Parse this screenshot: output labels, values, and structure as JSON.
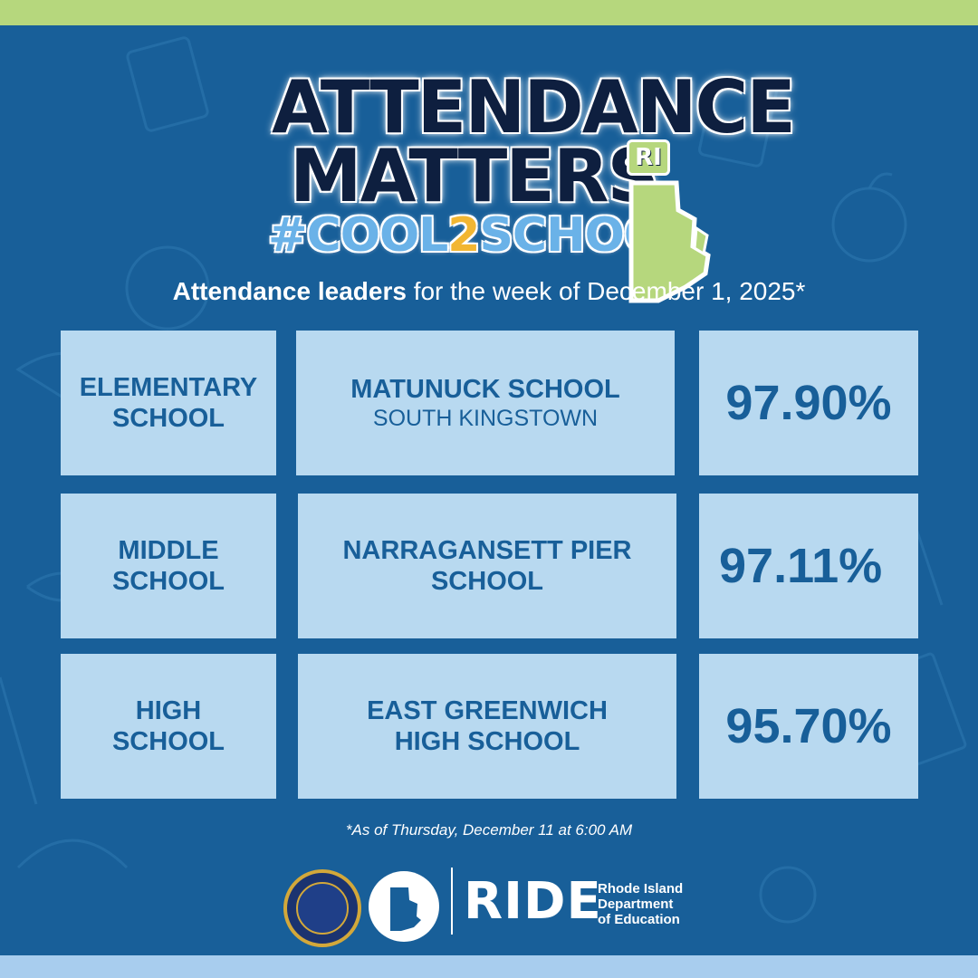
{
  "logo": {
    "line1": "ATTENDANCE",
    "line2": "MATTERS",
    "hashtag_prefix": "#COOL",
    "hashtag_two": "2",
    "hashtag_suffix": "SCHOOL",
    "ri_tag": "RI"
  },
  "headline": {
    "bold": "Attendance leaders",
    "rest": " for the week of December 1, 2025*"
  },
  "rows": [
    {
      "level_line1": "ELEMENTARY",
      "level_line2": "SCHOOL",
      "school_line1": "MATUNUCK SCHOOL",
      "school_line2": "",
      "district": "SOUTH KINGSTOWN",
      "rate": "97.90%"
    },
    {
      "level_line1": "MIDDLE",
      "level_line2": "SCHOOL",
      "school_line1": "NARRAGANSETT PIER",
      "school_line2": "SCHOOL",
      "district": "",
      "rate": "97.11%"
    },
    {
      "level_line1": "HIGH",
      "level_line2": "SCHOOL",
      "school_line1": "EAST GREENWICH",
      "school_line2": "HIGH SCHOOL",
      "district": "",
      "rate": "95.70%"
    }
  ],
  "footnote": "*As of Thursday, December 11 at 6:00 AM",
  "footer": {
    "ride": "RIDE",
    "org_line1": "Rhode Island",
    "org_line2": "Department",
    "org_line3": "of Education"
  },
  "colors": {
    "background": "#185f99",
    "cell": "#b8d9f0",
    "top_strip": "#b6d77d",
    "bottom_strip": "#a8cdee",
    "logo_text": "#0e1f3f"
  }
}
